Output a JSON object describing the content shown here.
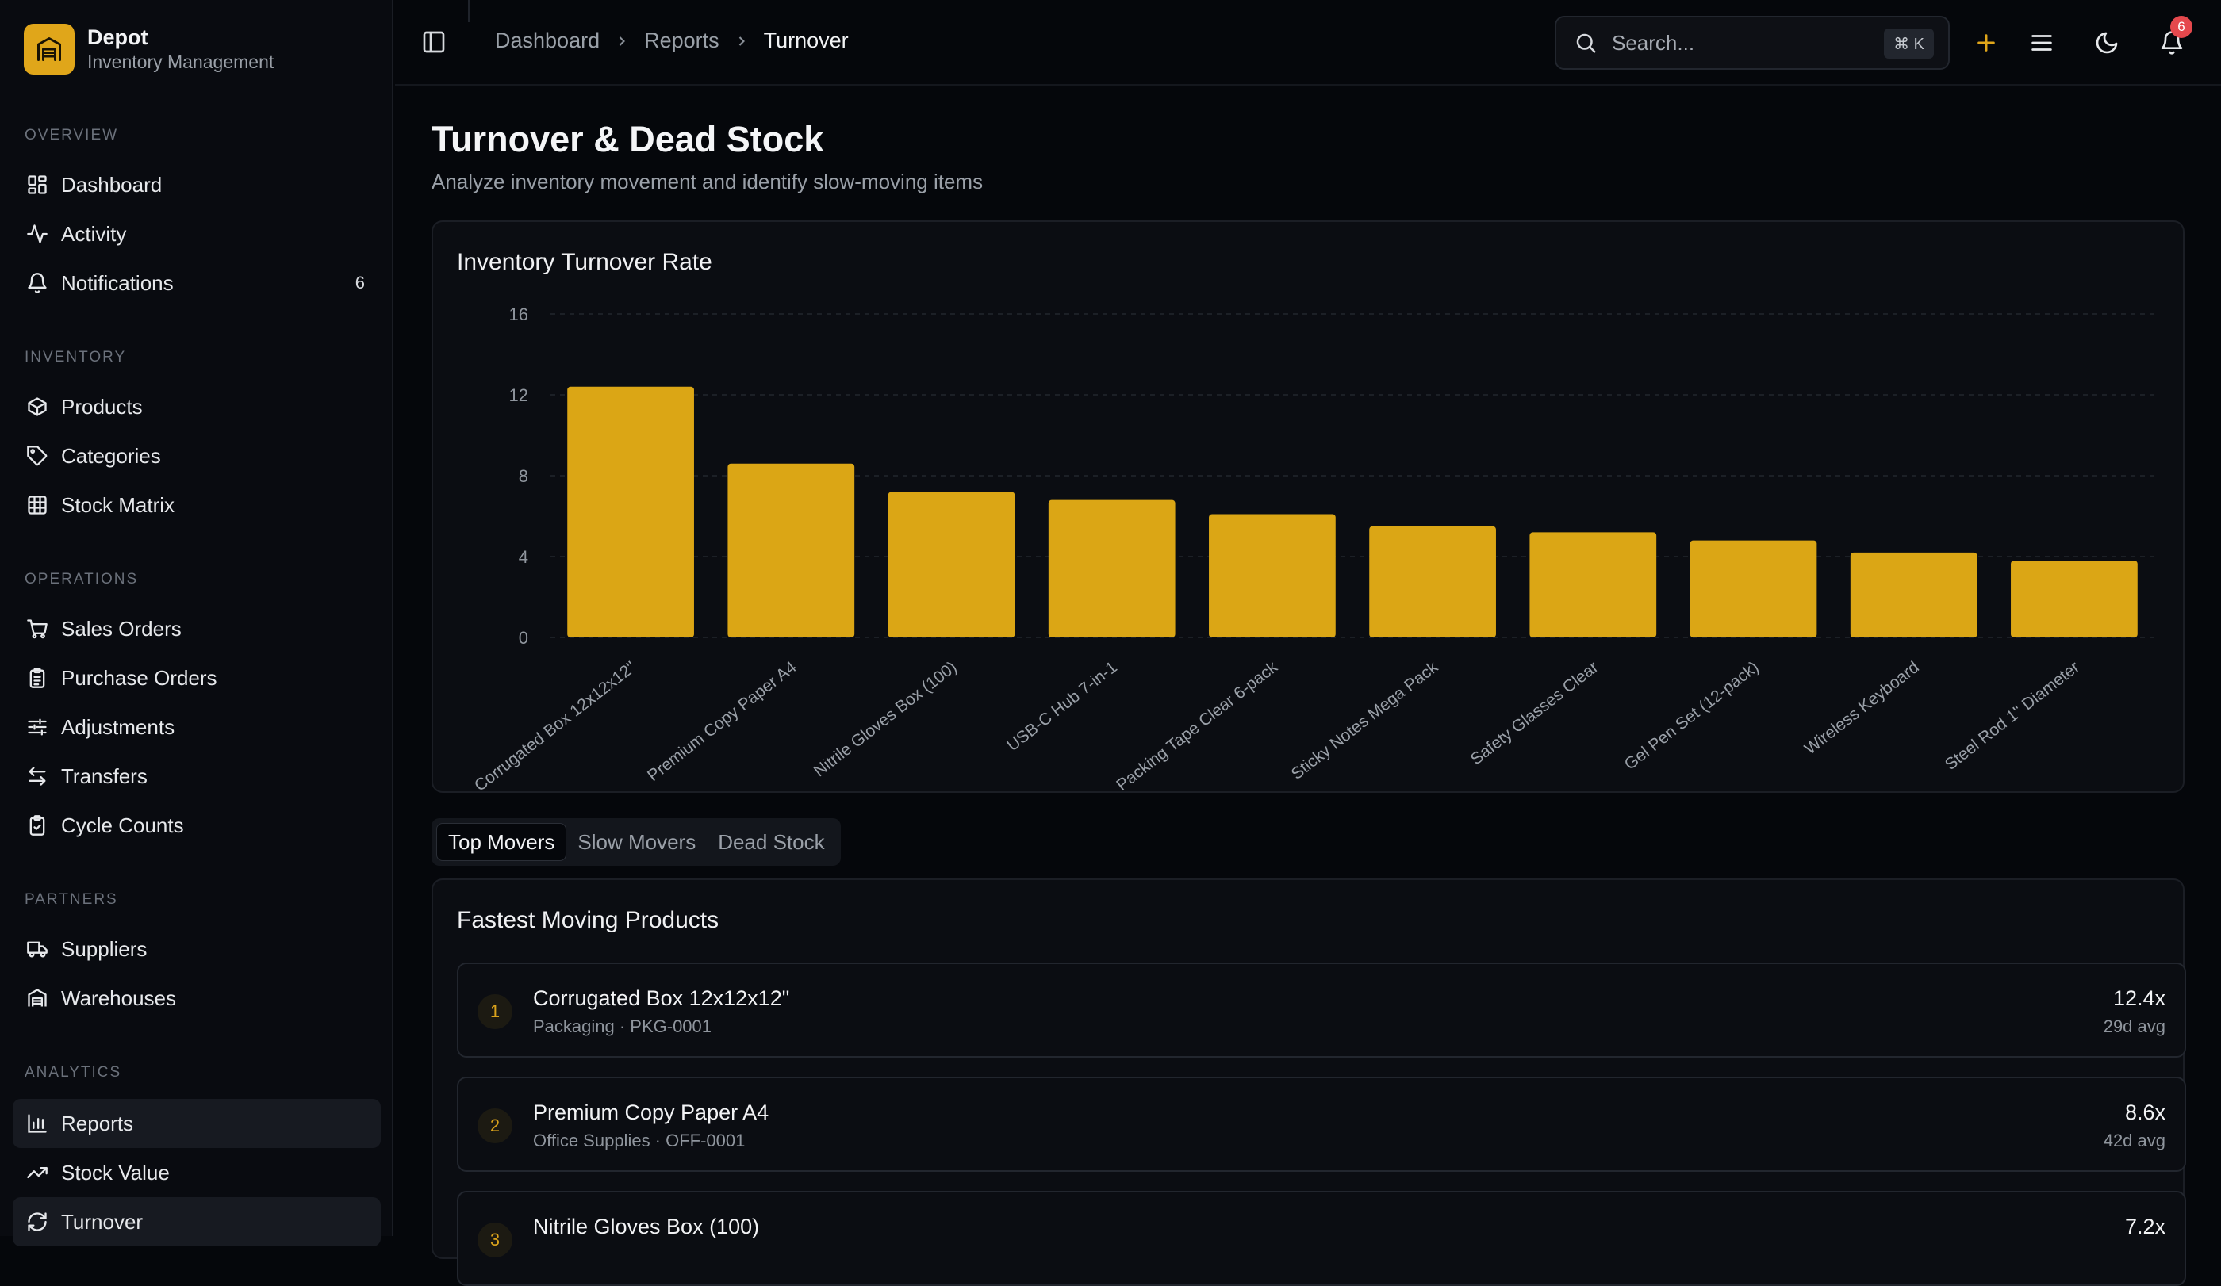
{
  "brand": {
    "name": "Depot",
    "subtitle": "Inventory Management"
  },
  "sidebar": {
    "sections": [
      {
        "label": "OVERVIEW",
        "items": [
          {
            "label": "Dashboard",
            "icon": "dashboard-icon"
          },
          {
            "label": "Activity",
            "icon": "activity-icon"
          },
          {
            "label": "Notifications",
            "icon": "bell-icon",
            "count": "6"
          }
        ]
      },
      {
        "label": "INVENTORY",
        "items": [
          {
            "label": "Products",
            "icon": "box-icon"
          },
          {
            "label": "Categories",
            "icon": "tag-icon"
          },
          {
            "label": "Stock Matrix",
            "icon": "grid-icon"
          }
        ]
      },
      {
        "label": "OPERATIONS",
        "items": [
          {
            "label": "Sales Orders",
            "icon": "cart-icon"
          },
          {
            "label": "Purchase Orders",
            "icon": "clipboard-icon"
          },
          {
            "label": "Adjustments",
            "icon": "sliders-icon"
          },
          {
            "label": "Transfers",
            "icon": "transfer-icon"
          },
          {
            "label": "Cycle Counts",
            "icon": "clipboard-check-icon"
          }
        ]
      },
      {
        "label": "PARTNERS",
        "items": [
          {
            "label": "Suppliers",
            "icon": "truck-icon"
          },
          {
            "label": "Warehouses",
            "icon": "warehouse-icon"
          }
        ]
      },
      {
        "label": "ANALYTICS",
        "items": [
          {
            "label": "Reports",
            "icon": "bar-chart-icon"
          },
          {
            "label": "Stock Value",
            "icon": "trending-up-icon"
          },
          {
            "label": "Turnover",
            "icon": "refresh-icon",
            "active": true
          }
        ]
      }
    ]
  },
  "topbar": {
    "breadcrumb": [
      "Dashboard",
      "Reports",
      "Turnover"
    ],
    "search_placeholder": "Search...",
    "search_shortcut": "⌘ K",
    "notification_count": "6"
  },
  "page": {
    "title": "Turnover & Dead Stock",
    "subtitle": "Analyze inventory movement and identify slow-moving items"
  },
  "chart_card_title": "Inventory Turnover Rate",
  "chart_data": {
    "type": "bar",
    "title": "Inventory Turnover Rate",
    "categories": [
      "Corrugated Box 12x12x12\"",
      "Premium Copy Paper A4",
      "Nitrile Gloves Box (100)",
      "USB-C Hub 7-in-1",
      "Packing Tape Clear 6-pack",
      "Sticky Notes Mega Pack",
      "Safety Glasses Clear",
      "Gel Pen Set (12-pack)",
      "Wireless Keyboard",
      "Steel Rod 1\" Diameter"
    ],
    "values": [
      12.4,
      8.6,
      7.2,
      6.8,
      6.1,
      5.5,
      5.2,
      4.8,
      4.2,
      3.8
    ],
    "yticks": [
      0,
      4,
      8,
      12,
      16
    ],
    "ylim": [
      0,
      16
    ],
    "grid": true,
    "bar_color": "#dba615"
  },
  "tabs": [
    {
      "label": "Top Movers",
      "active": true
    },
    {
      "label": "Slow Movers"
    },
    {
      "label": "Dead Stock"
    }
  ],
  "list": {
    "title": "Fastest Moving Products",
    "items": [
      {
        "rank": "1",
        "name": "Corrugated Box 12x12x12\"",
        "meta": "Packaging · PKG-0001",
        "rate": "12.4x",
        "avg": "29d avg"
      },
      {
        "rank": "2",
        "name": "Premium Copy Paper A4",
        "meta": "Office Supplies · OFF-0001",
        "rate": "8.6x",
        "avg": "42d avg"
      },
      {
        "rank": "3",
        "name": "Nitrile Gloves Box (100)",
        "meta": "",
        "rate": "7.2x",
        "avg": ""
      }
    ]
  },
  "colors": {
    "accent": "#dba615",
    "background": "#05070b",
    "sidebar": "#090b10"
  }
}
